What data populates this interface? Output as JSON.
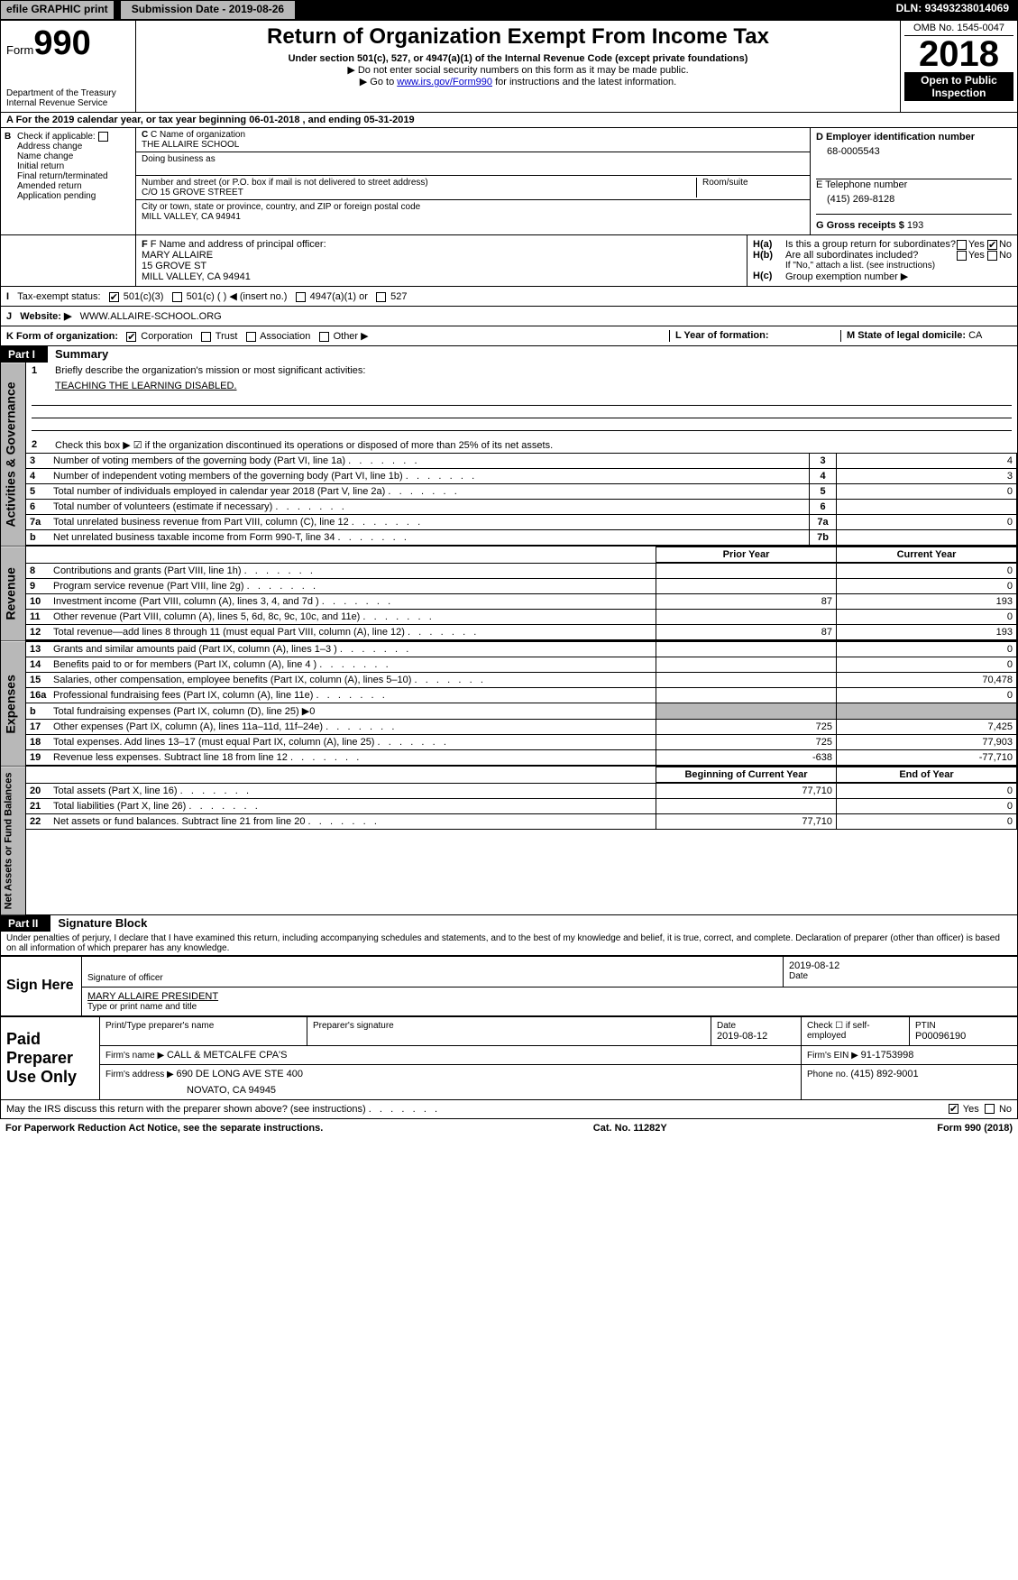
{
  "topbar": {
    "efile": "efile GRAPHIC print",
    "sub_date_label": "Submission Date - ",
    "sub_date": "2019-08-26",
    "dln_label": "DLN: ",
    "dln": "93493238014069"
  },
  "header": {
    "form_label": "Form",
    "form_num": "990",
    "dept1": "Department of the Treasury",
    "dept2": "Internal Revenue Service",
    "title": "Return of Organization Exempt From Income Tax",
    "sub1": "Under section 501(c), 527, or 4947(a)(1) of the Internal Revenue Code (except private foundations)",
    "sub2": "▶ Do not enter social security numbers on this form as it may be made public.",
    "sub3_pre": "▶ Go to ",
    "sub3_link": "www.irs.gov/Form990",
    "sub3_post": " for instructions and the latest information.",
    "omb": "OMB No. 1545-0047",
    "year": "2018",
    "open_public": "Open to Public Inspection"
  },
  "lineA": {
    "pre": "A   For the 2019 calendar year, or tax year beginning ",
    "begin": "06-01-2018",
    "mid": "       , and ending ",
    "end": "05-31-2019"
  },
  "boxB": {
    "label": "Check if applicable:",
    "items": [
      "Address change",
      "Name change",
      "Initial return",
      "Final return/terminated",
      "Amended return",
      "Application pending"
    ]
  },
  "boxC": {
    "c_label": "C Name of organization",
    "org": "THE ALLAIRE SCHOOL",
    "dba_label": "Doing business as",
    "addr_label": "Number and street (or P.O. box if mail is not delivered to street address)",
    "addr": "C/O 15 GROVE STREET",
    "room_label": "Room/suite",
    "city_label": "City or town, state or province, country, and ZIP or foreign postal code",
    "city": "MILL VALLEY, CA  94941",
    "f_label": "F Name and address of principal officer:",
    "officer_name": "MARY ALLAIRE",
    "officer_addr1": "15 GROVE ST",
    "officer_addr2": "MILL VALLEY, CA  94941"
  },
  "boxD": {
    "label": "D Employer identification number",
    "ein": "68-0005543",
    "e_label": "E Telephone number",
    "phone": "(415) 269-8128",
    "g_label": "G Gross receipts $ ",
    "gross": "193"
  },
  "boxH": {
    "a": "Is this a group return for subordinates?",
    "b": "Are all subordinates included?",
    "b_note": "If \"No,\" attach a list. (see instructions)",
    "c": "Group exemption number ▶",
    "yes": "Yes",
    "no": "No"
  },
  "rowI": {
    "label": "Tax-exempt status:",
    "opts": [
      "501(c)(3)",
      "501(c) (   ) ◀ (insert no.)",
      "4947(a)(1) or",
      "527"
    ]
  },
  "rowJ": {
    "label": "Website: ▶",
    "val": "WWW.ALLAIRE-SCHOOL.ORG"
  },
  "rowK": {
    "label": "K Form of organization:",
    "opts": [
      "Corporation",
      "Trust",
      "Association",
      "Other ▶"
    ],
    "L": "L Year of formation:",
    "M": "M State of legal domicile: ",
    "Mval": "CA"
  },
  "part1": {
    "tab": "Activities & Governance",
    "label": "Part I",
    "title": "Summary",
    "l1": "Briefly describe the organization's mission or most significant activities:",
    "mission": "TEACHING THE LEARNING DISABLED.",
    "l2": "Check this box ▶ ☑ if the organization discontinued its operations or disposed of more than 25% of its net assets.",
    "rows": [
      {
        "n": "3",
        "t": "Number of voting members of the governing body (Part VI, line 1a)",
        "box": "3",
        "val": "4"
      },
      {
        "n": "4",
        "t": "Number of independent voting members of the governing body (Part VI, line 1b)",
        "box": "4",
        "val": "3"
      },
      {
        "n": "5",
        "t": "Total number of individuals employed in calendar year 2018 (Part V, line 2a)",
        "box": "5",
        "val": "0"
      },
      {
        "n": "6",
        "t": "Total number of volunteers (estimate if necessary)",
        "box": "6",
        "val": ""
      },
      {
        "n": "7a",
        "t": "Total unrelated business revenue from Part VIII, column (C), line 12",
        "box": "7a",
        "val": "0"
      },
      {
        "n": "b",
        "t": "Net unrelated business taxable income from Form 990-T, line 34",
        "box": "7b",
        "val": ""
      }
    ],
    "py_hdr": "Prior Year",
    "cy_hdr": "Current Year"
  },
  "revenue": {
    "tab": "Revenue",
    "rows": [
      {
        "n": "8",
        "t": "Contributions and grants (Part VIII, line 1h)",
        "py": "",
        "cy": "0"
      },
      {
        "n": "9",
        "t": "Program service revenue (Part VIII, line 2g)",
        "py": "",
        "cy": "0"
      },
      {
        "n": "10",
        "t": "Investment income (Part VIII, column (A), lines 3, 4, and 7d )",
        "py": "87",
        "cy": "193"
      },
      {
        "n": "11",
        "t": "Other revenue (Part VIII, column (A), lines 5, 6d, 8c, 9c, 10c, and 11e)",
        "py": "",
        "cy": "0"
      },
      {
        "n": "12",
        "t": "Total revenue—add lines 8 through 11 (must equal Part VIII, column (A), line 12)",
        "py": "87",
        "cy": "193"
      }
    ]
  },
  "expenses": {
    "tab": "Expenses",
    "rows": [
      {
        "n": "13",
        "t": "Grants and similar amounts paid (Part IX, column (A), lines 1–3 )",
        "py": "",
        "cy": "0"
      },
      {
        "n": "14",
        "t": "Benefits paid to or for members (Part IX, column (A), line 4 )",
        "py": "",
        "cy": "0"
      },
      {
        "n": "15",
        "t": "Salaries, other compensation, employee benefits (Part IX, column (A), lines 5–10)",
        "py": "",
        "cy": "70,478"
      },
      {
        "n": "16a",
        "t": "Professional fundraising fees (Part IX, column (A), line 11e)",
        "py": "",
        "cy": "0"
      },
      {
        "n": "b",
        "t": "Total fundraising expenses (Part IX, column (D), line 25) ▶0",
        "py": null,
        "cy": null
      },
      {
        "n": "17",
        "t": "Other expenses (Part IX, column (A), lines 11a–11d, 11f–24e)",
        "py": "725",
        "cy": "7,425"
      },
      {
        "n": "18",
        "t": "Total expenses. Add lines 13–17 (must equal Part IX, column (A), line 25)",
        "py": "725",
        "cy": "77,903"
      },
      {
        "n": "19",
        "t": "Revenue less expenses. Subtract line 18 from line 12",
        "py": "-638",
        "cy": "-77,710"
      }
    ]
  },
  "netassets": {
    "tab": "Net Assets or Fund Balances",
    "hdr_py": "Beginning of Current Year",
    "hdr_cy": "End of Year",
    "rows": [
      {
        "n": "20",
        "t": "Total assets (Part X, line 16)",
        "py": "77,710",
        "cy": "0"
      },
      {
        "n": "21",
        "t": "Total liabilities (Part X, line 26)",
        "py": "",
        "cy": "0"
      },
      {
        "n": "22",
        "t": "Net assets or fund balances. Subtract line 21 from line 20",
        "py": "77,710",
        "cy": "0"
      }
    ]
  },
  "part2": {
    "label": "Part II",
    "title": "Signature Block",
    "perjury": "Under penalties of perjury, I declare that I have examined this return, including accompanying schedules and statements, and to the best of my knowledge and belief, it is true, correct, and complete. Declaration of preparer (other than officer) is based on all information of which preparer has any knowledge.",
    "sign_here": "Sign Here",
    "sig_officer": "Signature of officer",
    "date_lbl": "Date",
    "sig_date": "2019-08-12",
    "name_title_lbl": "Type or print name and title",
    "name_title": "MARY ALLAIRE  PRESIDENT",
    "paid": "Paid Preparer Use Only",
    "pt_name_lbl": "Print/Type preparer's name",
    "pt_sig_lbl": "Preparer's signature",
    "pt_date_lbl": "Date",
    "pt_date": "2019-08-12",
    "pt_check_lbl": "Check ☐ if self-employed",
    "ptin_lbl": "PTIN",
    "ptin": "P00096190",
    "firm_name_lbl": "Firm's name    ▶ ",
    "firm_name": "CALL & METCALFE CPA'S",
    "firm_ein_lbl": "Firm's EIN ▶ ",
    "firm_ein": "91-1753998",
    "firm_addr_lbl": "Firm's address ▶ ",
    "firm_addr1": "690 DE LONG AVE STE 400",
    "firm_addr2": "NOVATO, CA  94945",
    "firm_phone_lbl": "Phone no. ",
    "firm_phone": "(415) 892-9001",
    "may_irs": "May the IRS discuss this return with the preparer shown above? (see instructions)",
    "yes": "Yes",
    "no": "No"
  },
  "footer": {
    "left": "For Paperwork Reduction Act Notice, see the separate instructions.",
    "mid": "Cat. No. 11282Y",
    "right": "Form 990 (2018)"
  }
}
